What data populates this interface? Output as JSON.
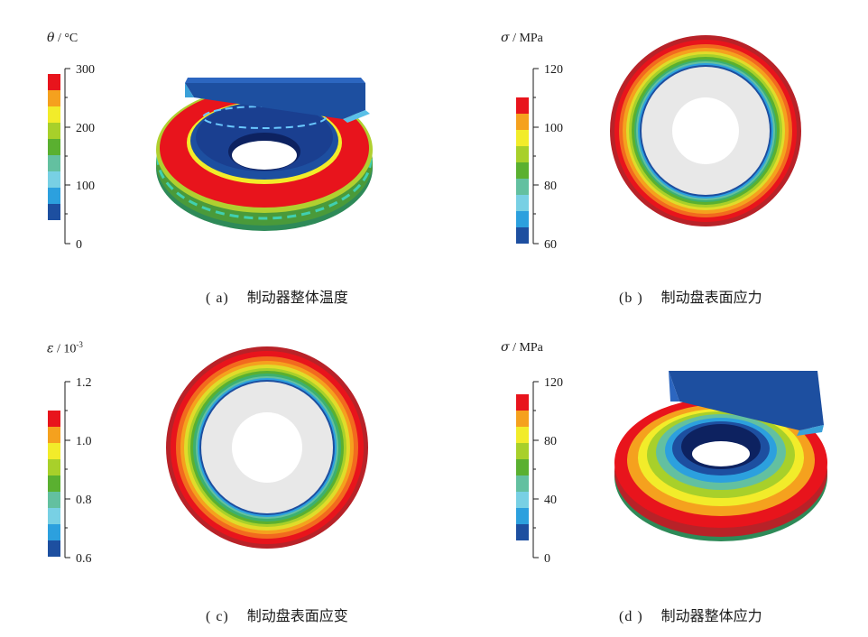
{
  "panels": [
    {
      "id": "a",
      "caption_label": "( a)",
      "caption_text": "制动器整体温度",
      "unit_symbol": "θ",
      "unit_suffix": " / °C",
      "ticks": [
        "300",
        "200",
        "100",
        "0"
      ]
    },
    {
      "id": "b",
      "caption_label": "(b )",
      "caption_text": "制动盘表面应力",
      "unit_symbol": "σ",
      "unit_suffix": " / MPa",
      "ticks": [
        "120",
        "100",
        "80",
        "60"
      ]
    },
    {
      "id": "c",
      "caption_label": "( c)",
      "caption_text": "制动盘表面应变",
      "unit_symbol": "ε",
      "unit_suffix": " / 10",
      "unit_exp": "-3",
      "ticks": [
        "1.2",
        "1.0",
        "0.8",
        "0.6"
      ]
    },
    {
      "id": "d",
      "caption_label": "(d )",
      "caption_text": "制动器整体应力",
      "unit_symbol": "σ",
      "unit_suffix": " / MPa",
      "ticks": [
        "120",
        "80",
        "40",
        "0"
      ]
    }
  ],
  "colors": {
    "scale": [
      "#e8141c",
      "#f5a11e",
      "#f2ec2a",
      "#a8d02a",
      "#5ab030",
      "#63c0a0",
      "#78d0e4",
      "#2ca0de",
      "#1d4fa0"
    ],
    "disc_center": "#e8e8e8",
    "outer_ring": "#b82228"
  }
}
